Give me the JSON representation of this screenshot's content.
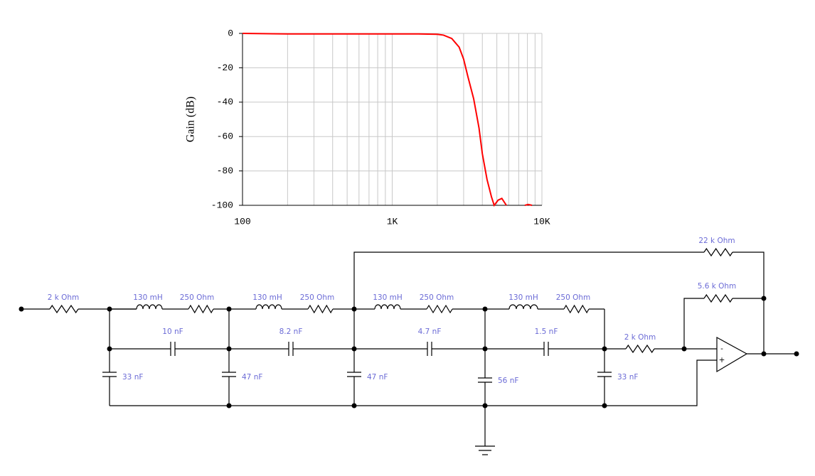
{
  "chart_data": {
    "type": "line",
    "y_label": "Gain (dB)",
    "log_x": true,
    "grid": true,
    "x": [
      100,
      200,
      1000,
      1500,
      2000,
      2200,
      2500,
      2800,
      3000,
      3200,
      3500,
      3800,
      4000,
      4300,
      4600,
      4800,
      5100,
      5400,
      5790,
      null,
      7690,
      8100,
      8580
    ],
    "series": [
      {
        "color": "#ff0000",
        "values": [
          0,
          -0.3,
          -0.3,
          -0.3,
          -0.5,
          -1,
          -3,
          -8,
          -15,
          -25,
          -38,
          -55,
          -70,
          -85,
          -95,
          -100,
          -97,
          -96,
          -100,
          null,
          -100,
          -99.5,
          -100
        ]
      }
    ],
    "xlim": [
      100,
      10000
    ],
    "xticks": [
      100,
      {
        "value": 1000,
        "label": "1K"
      },
      {
        "value": 10000,
        "label": "10K"
      }
    ],
    "x_minor_ticks": [
      200,
      300,
      400,
      500,
      600,
      700,
      800,
      900,
      2000,
      3000,
      4000,
      5000,
      6000,
      7000,
      8000,
      9000
    ],
    "ylim": [
      -100,
      0
    ],
    "yticks": [
      0,
      -20,
      -40,
      -60,
      -80,
      -100
    ]
  },
  "circuit": {
    "labels": [
      "2 k Ohm",
      "130 mH",
      "250  Ohm",
      "130 mH",
      "250  Ohm",
      "130 mH",
      "250  Ohm",
      "130 mH",
      "250  Ohm",
      "10 nF",
      "8.2 nF",
      "4.7 nF",
      "1.5 nF",
      "33 nF",
      "47 nF",
      "47 nF",
      "56 nF",
      "33 nF",
      "2 k Ohm",
      "5.6 k Ohm",
      "22 k Ohm"
    ],
    "opamp_inputs": [
      "-",
      "+"
    ]
  }
}
